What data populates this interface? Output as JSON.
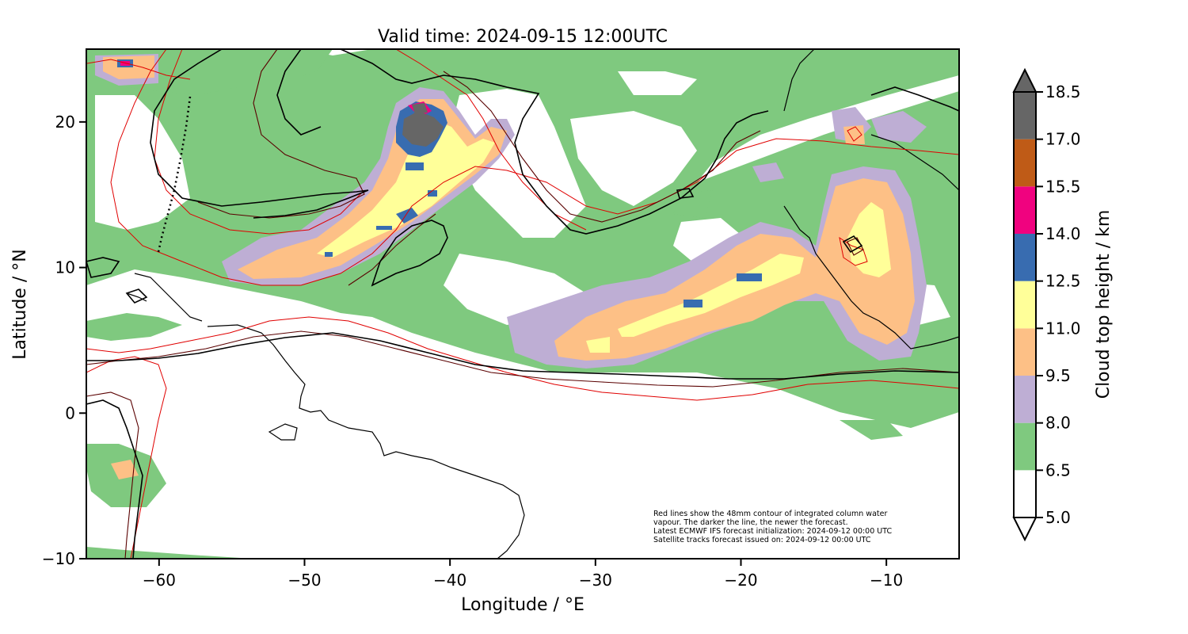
{
  "title": "Valid time: 2024-09-15 12:00UTC",
  "x_axis": {
    "label": "Longitude / °E",
    "range": [
      -65,
      -5
    ],
    "ticks": [
      {
        "value": -60,
        "label": "−60"
      },
      {
        "value": -50,
        "label": "−50"
      },
      {
        "value": -40,
        "label": "−40"
      },
      {
        "value": -30,
        "label": "−30"
      },
      {
        "value": -20,
        "label": "−20"
      },
      {
        "value": -10,
        "label": "−10"
      }
    ]
  },
  "y_axis": {
    "label": "Latitude / °N",
    "range": [
      -10,
      25
    ],
    "ticks": [
      {
        "value": -10,
        "label": "−10"
      },
      {
        "value": 0,
        "label": "0"
      },
      {
        "value": 10,
        "label": "10"
      },
      {
        "value": 20,
        "label": "20"
      }
    ]
  },
  "colorbar": {
    "label": "Cloud top height / km",
    "extend": "both",
    "levels": [
      {
        "value": "5.0",
        "color": "#ffffff"
      },
      {
        "value": "6.5",
        "color": "#7fc97f"
      },
      {
        "value": "8.0",
        "color": "#beaed4"
      },
      {
        "value": "9.5",
        "color": "#fdc086"
      },
      {
        "value": "11.0",
        "color": "#ffff99"
      },
      {
        "value": "12.5",
        "color": "#386cb0"
      },
      {
        "value": "14.0",
        "color": "#f0027f"
      },
      {
        "value": "15.5",
        "color": "#bf5b17"
      },
      {
        "value": "17.0",
        "color": "#666666"
      },
      {
        "value": "18.5",
        "color": null
      }
    ]
  },
  "annotation": [
    "Red lines show the 48mm contour of integrated column water",
    "vapour. The darker the line, the newer the forecast.",
    "Latest ECMWF IFS forecast initialization: 2024-09-12 00:00 UTC",
    "Satellite tracks forecast issued on: 2024-09-12 00:00 UTC"
  ],
  "colors": {
    "contour_newest": "#000000",
    "contour_mid": "#5a0000",
    "contour_old": "#e00000",
    "coastline": "#000000"
  }
}
